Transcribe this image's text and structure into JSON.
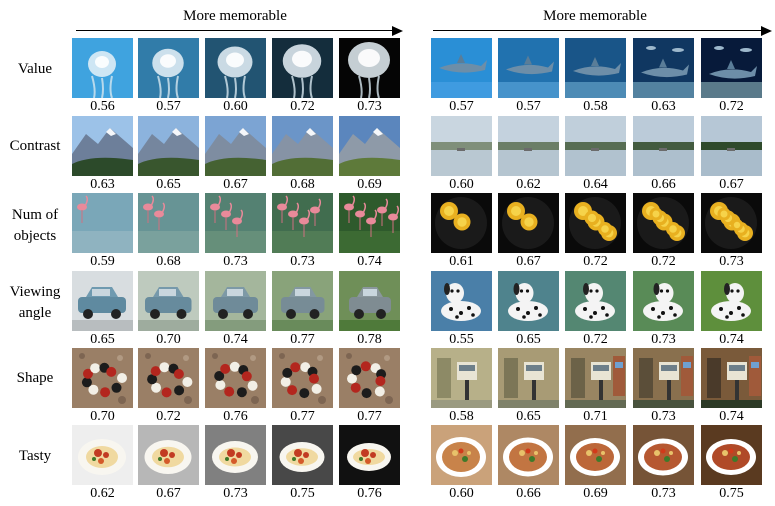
{
  "headers": {
    "left": "More memorable",
    "right": "More memorable"
  },
  "rows": [
    {
      "label": "Value",
      "left": {
        "theme": "jellyfish",
        "scores": [
          "0.56",
          "0.57",
          "0.60",
          "0.72",
          "0.73"
        ]
      },
      "right": {
        "theme": "shark",
        "scores": [
          "0.57",
          "0.57",
          "0.58",
          "0.63",
          "0.72"
        ]
      }
    },
    {
      "label": "Contrast",
      "left": {
        "theme": "mountain",
        "scores": [
          "0.63",
          "0.65",
          "0.67",
          "0.68",
          "0.69"
        ]
      },
      "right": {
        "theme": "lake",
        "scores": [
          "0.60",
          "0.62",
          "0.64",
          "0.66",
          "0.67"
        ]
      }
    },
    {
      "label": "Num of objects",
      "left": {
        "theme": "flamingo",
        "scores": [
          "0.59",
          "0.68",
          "0.73",
          "0.73",
          "0.74"
        ]
      },
      "right": {
        "theme": "lemons",
        "scores": [
          "0.61",
          "0.67",
          "0.72",
          "0.72",
          "0.73"
        ]
      }
    },
    {
      "label": "Viewing angle",
      "left": {
        "theme": "car",
        "scores": [
          "0.65",
          "0.70",
          "0.74",
          "0.77",
          "0.78"
        ]
      },
      "right": {
        "theme": "dog",
        "scores": [
          "0.55",
          "0.65",
          "0.72",
          "0.73",
          "0.74"
        ]
      }
    },
    {
      "label": "Shape",
      "left": {
        "theme": "snake",
        "scores": [
          "0.70",
          "0.72",
          "0.76",
          "0.77",
          "0.77"
        ]
      },
      "right": {
        "theme": "house",
        "scores": [
          "0.58",
          "0.65",
          "0.71",
          "0.73",
          "0.74"
        ]
      }
    },
    {
      "label": "Tasty",
      "left": {
        "theme": "pasta",
        "scores": [
          "0.62",
          "0.67",
          "0.73",
          "0.75",
          "0.76"
        ]
      },
      "right": {
        "theme": "soup",
        "scores": [
          "0.60",
          "0.66",
          "0.69",
          "0.73",
          "0.75"
        ]
      }
    }
  ]
}
